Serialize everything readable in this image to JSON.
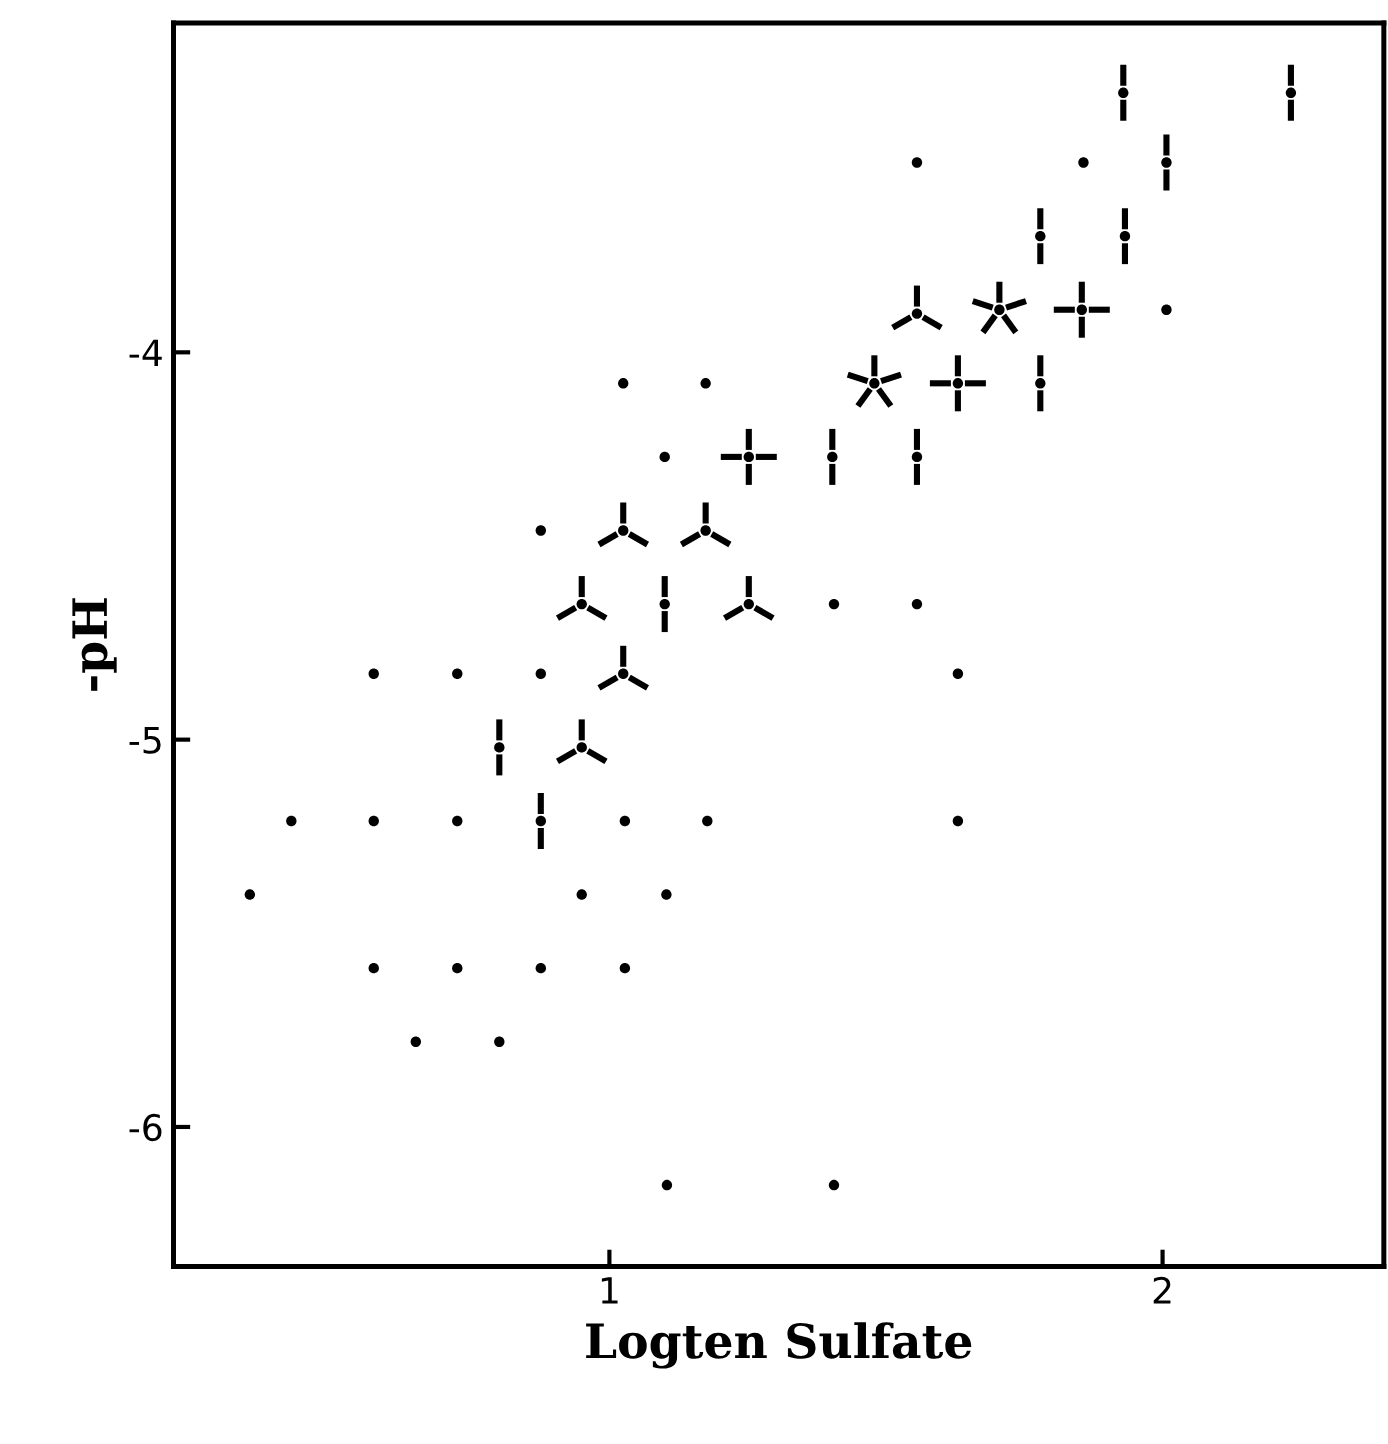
{
  "chart_data": {
    "type": "scatter",
    "xlabel": "Logten Sulfate",
    "ylabel": "-pH",
    "xlim": [
      0.212,
      2.4
    ],
    "ylim": [
      -6.36,
      -3.15
    ],
    "xticks": [
      1,
      2
    ],
    "yticks": [
      {
        "value": -6,
        "label": "-6"
      },
      {
        "value": -5,
        "label": "-5"
      },
      {
        "value": -4,
        "label": "-4"
      }
    ],
    "grid": false,
    "legend": false,
    "series": [
      {
        "marker": "circle",
        "color": "#000000",
        "x": [
          1.556,
          1.857,
          2.007,
          1.025,
          1.174,
          1.1,
          0.876,
          1.406,
          1.556,
          0.574,
          0.725,
          0.876,
          1.63,
          0.425,
          0.574,
          0.725,
          1.028,
          1.177,
          1.63,
          0.35,
          0.95,
          1.103,
          0.574,
          0.725,
          0.876,
          1.028,
          0.65,
          0.801,
          1.104,
          1.406
        ],
        "values": [
          -3.51,
          -3.51,
          -3.89,
          -4.08,
          -4.08,
          -4.27,
          -4.46,
          -4.65,
          -4.65,
          -4.83,
          -4.83,
          -4.83,
          -4.83,
          -5.21,
          -5.21,
          -5.21,
          -5.21,
          -5.21,
          -5.21,
          -5.4,
          -5.4,
          -5.4,
          -5.59,
          -5.59,
          -5.59,
          -5.59,
          -5.78,
          -5.78,
          -6.15,
          -6.15
        ]
      },
      {
        "marker": "circle",
        "color": "#000000",
        "x": [
          1.929,
          2.232,
          2.007,
          1.779,
          1.932,
          1.779,
          1.403,
          1.556,
          1.1,
          0.801,
          0.876
        ],
        "values": [
          -3.33,
          -3.33,
          -3.51,
          -3.7,
          -3.7,
          -4.08,
          -4.27,
          -4.27,
          -4.65,
          -5.02,
          -5.21
        ]
      },
      {
        "marker": "circle",
        "color": "#000000",
        "x": [
          1.556,
          1.025,
          1.174,
          0.95,
          1.252,
          1.025,
          0.95
        ],
        "values": [
          -3.9,
          -4.46,
          -4.46,
          -4.65,
          -4.65,
          -4.83,
          -5.02
        ]
      },
      {
        "marker": "circle",
        "color": "#000000",
        "x": [
          1.252,
          1.63,
          1.854
        ],
        "values": [
          -4.27,
          -4.08,
          -3.89
        ]
      },
      {
        "marker": "circle",
        "color": "#000000",
        "x": [
          1.479,
          1.705
        ],
        "values": [
          -4.08,
          -3.89
        ]
      }
    ]
  }
}
